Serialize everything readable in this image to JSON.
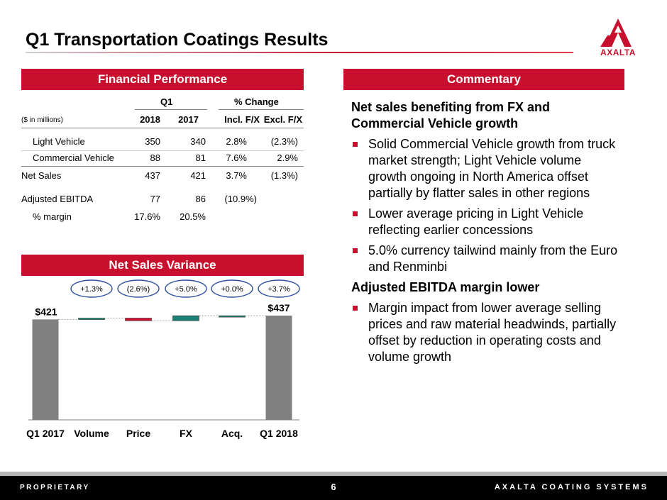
{
  "title": "Q1 Transportation Coatings Results",
  "logo_text": "AXALTA",
  "brand_color": "#c8102e",
  "sections": {
    "financial": "Financial Performance",
    "commentary": "Commentary",
    "variance": "Net Sales Variance"
  },
  "table": {
    "group_q1": "Q1",
    "group_change": "% Change",
    "units": "($ in millions)",
    "col_2018": "2018",
    "col_2017": "2017",
    "col_incl": "Incl. F/X",
    "col_excl": "Excl. F/X",
    "rows": [
      {
        "label": "Light Vehicle",
        "v2018": "350",
        "v2017": "340",
        "incl": "2.8%",
        "excl": "(2.3%)"
      },
      {
        "label": "Commercial Vehicle",
        "v2018": "88",
        "v2017": "81",
        "incl": "7.6%",
        "excl": "2.9%"
      },
      {
        "label": "Net Sales",
        "v2018": "437",
        "v2017": "421",
        "incl": "3.7%",
        "excl": "(1.3%)"
      },
      {
        "label": "Adjusted EBITDA",
        "v2018": "77",
        "v2017": "86",
        "incl": "(10.9%)",
        "excl": ""
      },
      {
        "label": "% margin",
        "v2018": "17.6%",
        "v2017": "20.5%",
        "incl": "",
        "excl": ""
      }
    ]
  },
  "commentary": {
    "heading1": "Net sales benefiting from FX and Commercial Vehicle growth",
    "bullets1": [
      "Solid Commercial Vehicle growth from truck market strength; Light Vehicle volume growth ongoing in North America offset partially by flatter sales in other regions",
      "Lower average pricing in Light Vehicle reflecting earlier concessions",
      "5.0% currency tailwind mainly from the Euro and Renminbi"
    ],
    "heading2": "Adjusted EBITDA margin lower",
    "bullets2": [
      "Margin impact from lower average selling prices and raw material headwinds, partially offset by reduction in operating costs and volume growth"
    ]
  },
  "chart_data": {
    "type": "bar",
    "subtype": "waterfall",
    "categories": [
      "Q1 2017",
      "Volume",
      "Price",
      "FX",
      "Acq.",
      "Q1 2018"
    ],
    "start_value": 421,
    "end_value": 437,
    "changes": [
      5.5,
      -11.0,
      21.0,
      0.1
    ],
    "pct_labels": [
      "+1.3%",
      "(2.6%)",
      "+5.0%",
      "+0.0%",
      "+3.7%"
    ],
    "value_labels": [
      "$421",
      "$437"
    ],
    "colors": {
      "total": "#808080",
      "positive": "#1a7f75",
      "negative": "#c8102e"
    }
  },
  "footer": {
    "left": "PROPRIETARY",
    "page": "6",
    "right": "AXALTA COATING SYSTEMS"
  }
}
